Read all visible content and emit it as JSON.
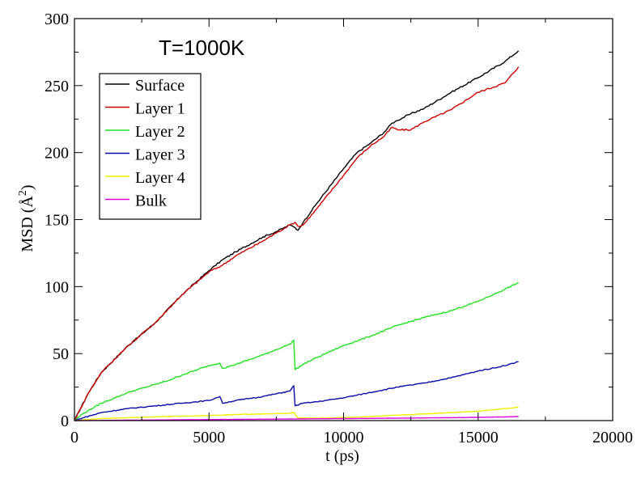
{
  "chart_data": {
    "type": "line",
    "annotation": "T=1000K",
    "xlabel": "t (ps)",
    "ylabel": "MSD (Å²)",
    "ylabel_main": "MSD (",
    "ylabel_unit": "Å",
    "ylabel_exp": "2",
    "ylabel_close": ")",
    "xlim": [
      0,
      20000
    ],
    "ylim": [
      0,
      300
    ],
    "xticks": [
      0,
      5000,
      10000,
      15000,
      20000
    ],
    "yticks": [
      0,
      50,
      100,
      150,
      200,
      250,
      300
    ],
    "xtick_labels": [
      "0",
      "5000",
      "10000",
      "15000",
      "20000"
    ],
    "ytick_labels": [
      "0",
      "50",
      "100",
      "150",
      "200",
      "250",
      "300"
    ],
    "legend_position": "upper-left",
    "grid": false,
    "series": [
      {
        "name": "Surface",
        "color": "#000000",
        "x": [
          0,
          500,
          1000,
          2000,
          3000,
          4000,
          5000,
          5500,
          6000,
          7000,
          7500,
          8000,
          8200,
          8300,
          8500,
          9000,
          10000,
          10500,
          11000,
          11500,
          11800,
          12000,
          12500,
          13000,
          14000,
          15000,
          16000,
          16500
        ],
        "y": [
          0,
          20,
          36,
          56,
          73,
          94,
          112,
          120,
          126,
          137,
          141,
          146,
          144,
          142,
          148,
          162,
          188,
          200,
          207,
          215,
          222,
          224,
          229,
          233,
          245,
          256,
          268,
          276
        ]
      },
      {
        "name": "Layer 1",
        "color": "#cc0000",
        "x": [
          0,
          500,
          1000,
          2000,
          3000,
          4000,
          5000,
          5500,
          6000,
          7000,
          7500,
          8000,
          8200,
          8300,
          8500,
          9000,
          10000,
          10500,
          11000,
          11500,
          11800,
          12000,
          12500,
          13000,
          14000,
          15000,
          16000,
          16500
        ],
        "y": [
          0,
          20,
          36,
          56,
          73,
          94,
          111,
          116,
          123,
          134,
          140,
          146,
          148,
          145,
          146,
          158,
          183,
          196,
          205,
          212,
          219,
          217,
          217,
          223,
          232,
          245,
          252,
          264
        ]
      },
      {
        "name": "Layer 2",
        "color": "#22e022",
        "x": [
          0,
          300,
          1000,
          2000,
          3000,
          3500,
          4000,
          5000,
          5400,
          5500,
          6000,
          7000,
          7500,
          8000,
          8150,
          8200,
          8500,
          9000,
          10000,
          11000,
          12000,
          13000,
          14000,
          15000,
          16000,
          16500
        ],
        "y": [
          0,
          5,
          13,
          21,
          27,
          30,
          34,
          41,
          43,
          39,
          42,
          49,
          53,
          57,
          60,
          38,
          42,
          47,
          56,
          63,
          71,
          77,
          82,
          89,
          98,
          103
        ]
      },
      {
        "name": "Layer 3",
        "color": "#0a0aa6",
        "x": [
          0,
          300,
          1000,
          2000,
          3000,
          4000,
          5000,
          5400,
          5500,
          6000,
          7000,
          8000,
          8150,
          8200,
          8500,
          9000,
          10000,
          11000,
          12000,
          13000,
          14000,
          15000,
          16000,
          16500
        ],
        "y": [
          0,
          2,
          6,
          9,
          11,
          13,
          15,
          18,
          13,
          15,
          18,
          22,
          26,
          11,
          13,
          14,
          17,
          21,
          25,
          28,
          32,
          37,
          41,
          44
        ]
      },
      {
        "name": "Layer 4",
        "color": "#f0f000",
        "x": [
          0,
          1000,
          2000,
          3000,
          4000,
          5000,
          6000,
          7000,
          8000,
          8150,
          8300,
          9000,
          10000,
          11000,
          12000,
          13000,
          14000,
          15000,
          16000,
          16500
        ],
        "y": [
          0,
          1.5,
          2.2,
          2.8,
          3.3,
          3.8,
          4.5,
          5,
          5.5,
          6,
          2,
          1.8,
          2.3,
          3,
          4,
          5,
          6,
          7,
          9,
          10
        ]
      },
      {
        "name": "Bulk",
        "color": "#e000e0",
        "x": [
          0,
          2000,
          4000,
          6000,
          8000,
          10000,
          12000,
          14000,
          16000,
          16500
        ],
        "y": [
          0,
          0.3,
          0.6,
          0.9,
          1.2,
          1.5,
          1.8,
          2.2,
          2.7,
          3
        ]
      }
    ]
  }
}
